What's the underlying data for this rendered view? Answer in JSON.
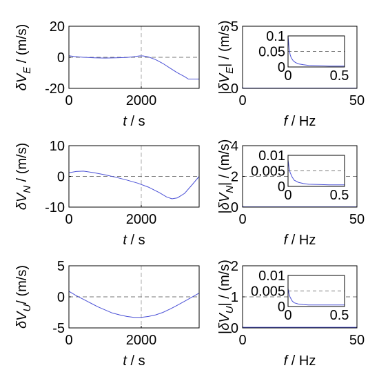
{
  "chart_data": [
    {
      "type": "line",
      "panel": "time",
      "xlabel_sym": "t",
      "xlabel_unit": "s",
      "ylabel_sym": "δV",
      "ylabel_sub": "E",
      "ylabel_unit": " / (m/s)",
      "xlim": [
        0,
        3600
      ],
      "ylim": [
        -20,
        20
      ],
      "xticks": [
        0,
        2000
      ],
      "yticks": [
        -20,
        0,
        20
      ],
      "vline": 2000,
      "hline": 0,
      "x": [
        0,
        150,
        400,
        700,
        1000,
        1300,
        1600,
        1800,
        1950,
        2050,
        2200,
        2400,
        2600,
        2800,
        3000,
        3200,
        3300,
        3450,
        3600
      ],
      "y": [
        1.0,
        0.5,
        0.0,
        -0.3,
        -0.5,
        -0.3,
        -0.1,
        0.4,
        0.9,
        0.9,
        0.2,
        -1.5,
        -4.0,
        -7.0,
        -10.0,
        -12.5,
        -14.0,
        -14.0,
        -14.0
      ]
    },
    {
      "type": "line",
      "panel": "spectrum",
      "xlabel_sym": "f",
      "xlabel_unit": "Hz",
      "ylabel_sym": "δV",
      "ylabel_sub": "E",
      "ylabel_unit": "| / (m/s)",
      "xlim": [
        0,
        50
      ],
      "ylim": [
        0,
        5
      ],
      "xticks": [
        0,
        50
      ],
      "yticks": [
        0,
        5
      ],
      "x": [
        0,
        0.3,
        50
      ],
      "y": [
        0.1,
        0.02,
        0.02
      ],
      "inset": {
        "xlim": [
          0,
          0.55
        ],
        "ylim": [
          0,
          0.1
        ],
        "xticks": [
          0,
          0.5
        ],
        "yticks": [
          0,
          0.05,
          0.1
        ],
        "ytick_labels": [
          "0",
          "0.05",
          "0.1"
        ],
        "hline": 0.05,
        "x": [
          0,
          0.01,
          0.02,
          0.03,
          0.05,
          0.07,
          0.1,
          0.15,
          0.2,
          0.3,
          0.4,
          0.5,
          0.55
        ],
        "y": [
          0.1,
          0.06,
          0.04,
          0.03,
          0.02,
          0.015,
          0.01,
          0.007,
          0.005,
          0.004,
          0.003,
          0.003,
          0.003
        ]
      }
    },
    {
      "type": "line",
      "panel": "time",
      "xlabel_sym": "t",
      "xlabel_unit": "s",
      "ylabel_sym": "δV",
      "ylabel_sub": "N",
      "ylabel_unit": " / (m/s)",
      "xlim": [
        0,
        3600
      ],
      "ylim": [
        -10,
        10
      ],
      "xticks": [
        0,
        2000
      ],
      "yticks": [
        -10,
        0,
        10
      ],
      "vline": 2000,
      "hline": 0,
      "x": [
        0,
        200,
        400,
        700,
        1000,
        1300,
        1600,
        1900,
        2200,
        2500,
        2700,
        2850,
        3000,
        3200,
        3400,
        3600
      ],
      "y": [
        1.2,
        1.6,
        1.7,
        1.2,
        0.5,
        -0.3,
        -1.2,
        -2.2,
        -3.5,
        -5.3,
        -6.7,
        -7.3,
        -7.0,
        -5.5,
        -2.8,
        0.0
      ]
    },
    {
      "type": "line",
      "panel": "spectrum",
      "xlabel_sym": "f",
      "xlabel_unit": "Hz",
      "ylabel_sym": "δV",
      "ylabel_sub": "N",
      "ylabel_unit": "| / (m/s)",
      "xlim": [
        0,
        50
      ],
      "ylim": [
        0,
        4
      ],
      "xticks": [
        0,
        50
      ],
      "yticks": [
        0,
        2,
        4
      ],
      "hline": 2,
      "x": [
        0,
        0.3,
        50
      ],
      "y": [
        0.1,
        0.02,
        0.02
      ],
      "inset": {
        "xlim": [
          0,
          0.55
        ],
        "ylim": [
          0,
          0.01
        ],
        "xticks": [
          0,
          0.5
        ],
        "yticks": [
          0,
          0.005,
          0.01
        ],
        "ytick_labels": [
          "0",
          "0.005",
          "0.01"
        ],
        "hline": 0.005,
        "x": [
          0,
          0.01,
          0.02,
          0.04,
          0.06,
          0.1,
          0.15,
          0.2,
          0.3,
          0.4,
          0.5,
          0.55
        ],
        "y": [
          0.0085,
          0.006,
          0.0045,
          0.003,
          0.002,
          0.0013,
          0.0009,
          0.0007,
          0.0006,
          0.0005,
          0.0005,
          0.0005
        ]
      }
    },
    {
      "type": "line",
      "panel": "time",
      "xlabel_sym": "t",
      "xlabel_unit": "s",
      "ylabel_sym": "δV",
      "ylabel_sub": "U",
      "ylabel_unit": "/ (m/s)",
      "xlim": [
        0,
        3600
      ],
      "ylim": [
        -5,
        5
      ],
      "xticks": [
        0,
        2000
      ],
      "yticks": [
        -5,
        0,
        5
      ],
      "vline": 2000,
      "hline": 0,
      "x": [
        0,
        200,
        400,
        600,
        800,
        1000,
        1200,
        1400,
        1600,
        1800,
        2000,
        2200,
        2400,
        2600,
        2800,
        3000,
        3200,
        3400,
        3600
      ],
      "y": [
        0.9,
        0.2,
        -0.4,
        -1.0,
        -1.6,
        -2.1,
        -2.6,
        -2.9,
        -3.15,
        -3.3,
        -3.3,
        -3.15,
        -2.9,
        -2.5,
        -1.95,
        -1.35,
        -0.7,
        -0.05,
        0.6
      ]
    },
    {
      "type": "line",
      "panel": "spectrum",
      "xlabel_sym": "f",
      "xlabel_unit": "Hz",
      "ylabel_sym": "δV",
      "ylabel_sub": "U",
      "ylabel_unit": "| / (m/s)",
      "xlim": [
        0,
        50
      ],
      "ylim": [
        0,
        2
      ],
      "xticks": [
        0,
        50
      ],
      "yticks": [
        0,
        1,
        2
      ],
      "hline": 1,
      "x": [
        0,
        0.3,
        50
      ],
      "y": [
        0.05,
        0.02,
        0.02
      ],
      "inset": {
        "xlim": [
          0,
          0.55
        ],
        "ylim": [
          0,
          0.01
        ],
        "xticks": [
          0,
          0.5
        ],
        "yticks": [
          0,
          0.005,
          0.01
        ],
        "ytick_labels": [
          "0",
          "0.005",
          "0.01"
        ],
        "hline": 0.005,
        "x": [
          0,
          0.01,
          0.02,
          0.04,
          0.06,
          0.1,
          0.15,
          0.2,
          0.3,
          0.4,
          0.5,
          0.55
        ],
        "y": [
          0.0058,
          0.004,
          0.003,
          0.0018,
          0.0012,
          0.0008,
          0.0006,
          0.0005,
          0.0005,
          0.0005,
          0.0005,
          0.0005
        ]
      }
    }
  ],
  "colors": {
    "series": "#4a50d6",
    "axes": "#000000",
    "ref": "#aaaaaa"
  }
}
